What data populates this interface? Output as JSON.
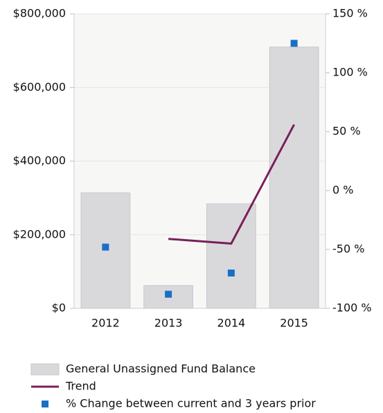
{
  "chart_data": {
    "type": "bar",
    "categories": [
      "2012",
      "2013",
      "2014",
      "2015"
    ],
    "series": [
      {
        "name": "General Unassigned Fund Balance",
        "type": "bar",
        "color": "#d9d9dc",
        "values": [
          314000,
          62000,
          284000,
          710000
        ]
      },
      {
        "name": "Trend",
        "type": "line",
        "color": "#7a1f5a",
        "axis": "y2",
        "values": [
          null,
          -41,
          -45,
          56
        ]
      },
      {
        "name": "% Change between current and 3 years prior",
        "type": "scatter",
        "color": "#1a6fc4",
        "axis": "y2",
        "values": [
          -48,
          -88,
          -70,
          125
        ]
      }
    ],
    "ylim": [
      0,
      800000
    ],
    "yticks": [
      {
        "value": 0,
        "label": "$0"
      },
      {
        "value": 200000,
        "label": "$200,000"
      },
      {
        "value": 400000,
        "label": "$400,000"
      },
      {
        "value": 600000,
        "label": "$600,000"
      },
      {
        "value": 800000,
        "label": "$800,000"
      }
    ],
    "y2lim": [
      -100,
      150
    ],
    "y2ticks": [
      {
        "value": -100,
        "label": "-100 %"
      },
      {
        "value": -50,
        "label": "-50 %"
      },
      {
        "value": 0,
        "label": "0 %"
      },
      {
        "value": 50,
        "label": "50 %"
      },
      {
        "value": 100,
        "label": "100 %"
      },
      {
        "value": 150,
        "label": "150 %"
      }
    ],
    "grid": true,
    "legend": "bottom"
  }
}
